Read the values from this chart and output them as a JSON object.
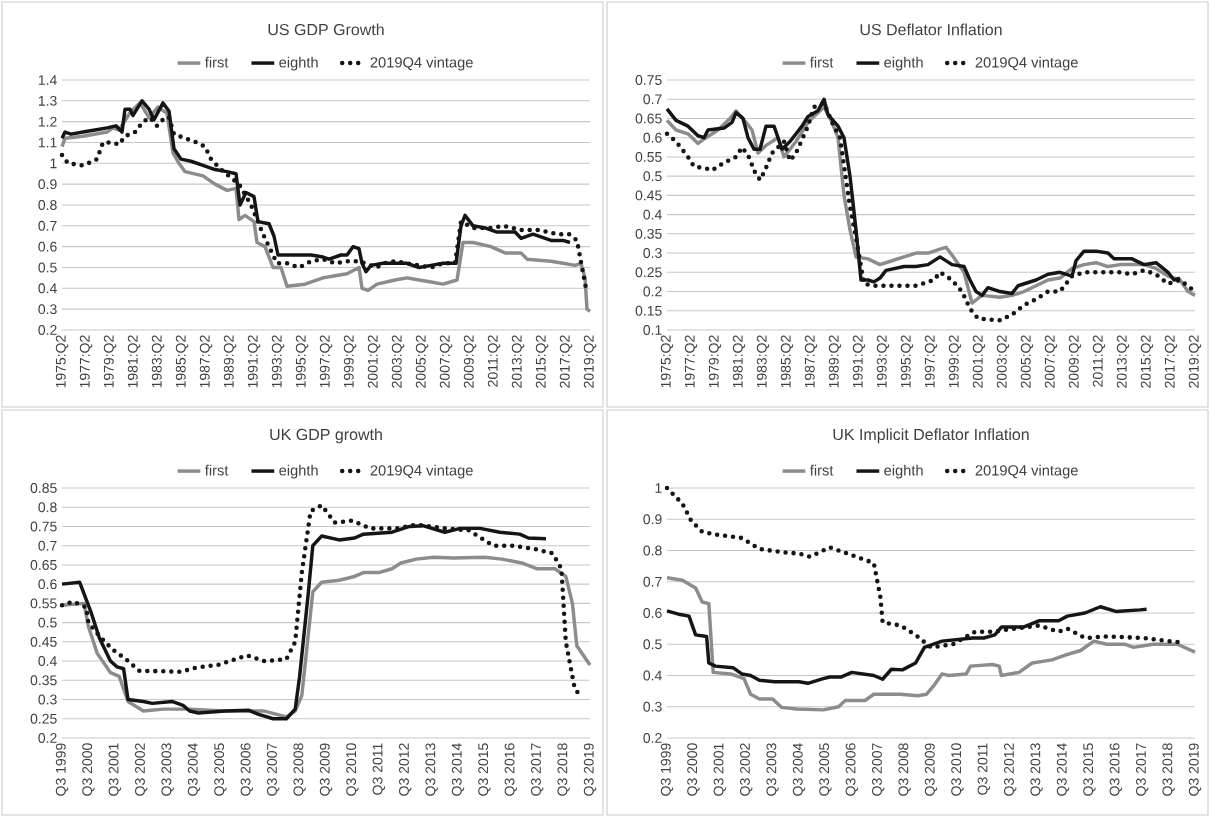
{
  "chart_data": [
    {
      "type": "line",
      "title": "US GDP Growth",
      "grid": "y",
      "legend": "top",
      "xlim": [
        "1975-04",
        "2019-04"
      ],
      "ylim": [
        0.2,
        1.4
      ],
      "yticks": [
        0.2,
        0.3,
        0.4,
        0.5,
        0.6,
        0.7,
        0.8,
        0.9,
        1,
        1.1,
        1.2,
        1.3,
        1.4
      ],
      "xticks": [
        {
          "value": "1975-04",
          "label": "1975:Q2"
        },
        {
          "value": "1977-04",
          "label": "1977:Q2"
        },
        {
          "value": "1979-04",
          "label": "1979:Q2"
        },
        {
          "value": "1981-04",
          "label": "1981:Q2"
        },
        {
          "value": "1983-04",
          "label": "1983:Q2"
        },
        {
          "value": "1985-04",
          "label": "1985:Q2"
        },
        {
          "value": "1987-04",
          "label": "1987:Q2"
        },
        {
          "value": "1989-04",
          "label": "1989:Q2"
        },
        {
          "value": "1991-04",
          "label": "1991:Q2"
        },
        {
          "value": "1993-04",
          "label": "1993:Q2"
        },
        {
          "value": "1995-04",
          "label": "1995:Q2"
        },
        {
          "value": "1997-04",
          "label": "1997:Q2"
        },
        {
          "value": "1999-04",
          "label": "1999:Q2"
        },
        {
          "value": "2001-04",
          "label": "2001:Q2"
        },
        {
          "value": "2003-04",
          "label": "2003:Q2"
        },
        {
          "value": "2005-04",
          "label": "2005:Q2"
        },
        {
          "value": "2007-04",
          "label": "2007:Q2"
        },
        {
          "value": "2009-04",
          "label": "2009:Q2"
        },
        {
          "value": "2011-04",
          "label": "2011:Q2"
        },
        {
          "value": "2013-04",
          "label": "2013:Q2"
        },
        {
          "value": "2015-04",
          "label": "2015:Q2"
        },
        {
          "value": "2017-04",
          "label": "2017:Q2"
        },
        {
          "value": "2019-04",
          "label": "2019:Q2"
        }
      ],
      "series": [
        {
          "name": "first",
          "color": "#8c8c8c",
          "line_style": "solid",
          "x": [
            "1975-04",
            "1975-07",
            "1977-01",
            "1979-01",
            "1979-07",
            "1980-01",
            "1981-01",
            "1981-10",
            "1982-07",
            "1983-04",
            "1984-01",
            "1984-07",
            "1985-01",
            "1985-07",
            "1987-01",
            "1988-01",
            "1989-01",
            "1989-10",
            "1990-01",
            "1990-07",
            "1991-04",
            "1991-07",
            "1992-03",
            "1992-11",
            "1993-07",
            "1994-01",
            "1995-07",
            "1997-01",
            "1998-01",
            "1999-01",
            "2000-01",
            "2000-04",
            "2000-10",
            "2001-07",
            "2003-01",
            "2004-01",
            "2005-01",
            "2006-01",
            "2007-01",
            "2008-03",
            "2008-09",
            "2009-07",
            "2011-01",
            "2012-03",
            "2013-07",
            "2014-01",
            "2016-01",
            "2017-01",
            "2018-01",
            "2018-07",
            "2018-11",
            "2019-01",
            "2019-04"
          ],
          "values": [
            1.08,
            1.12,
            1.13,
            1.15,
            1.17,
            1.16,
            1.25,
            1.29,
            1.22,
            1.27,
            1.24,
            1.05,
            1.0,
            0.96,
            0.94,
            0.9,
            0.87,
            0.88,
            0.73,
            0.75,
            0.72,
            0.62,
            0.6,
            0.5,
            0.5,
            0.41,
            0.42,
            0.45,
            0.46,
            0.47,
            0.5,
            0.4,
            0.39,
            0.42,
            0.44,
            0.45,
            0.44,
            0.43,
            0.42,
            0.44,
            0.62,
            0.62,
            0.6,
            0.57,
            0.57,
            0.54,
            0.53,
            0.52,
            0.51,
            0.52,
            0.45,
            0.3,
            0.29
          ]
        },
        {
          "name": "eighth",
          "color": "#151515",
          "line_style": "solid",
          "x": [
            "1975-04",
            "1975-07",
            "1976-01",
            "1977-01",
            "1978-01",
            "1979-01",
            "1979-10",
            "1980-04",
            "1980-07",
            "1980-12",
            "1981-03",
            "1981-12",
            "1982-07",
            "1982-12",
            "1983-09",
            "1984-03",
            "1984-08",
            "1985-03",
            "1986-01",
            "1987-01",
            "1988-01",
            "1989-01",
            "1989-10",
            "1990-02",
            "1990-08",
            "1991-04",
            "1991-08",
            "1992-07",
            "1992-12",
            "1993-04",
            "1994-01",
            "1995-01",
            "1996-01",
            "1997-01",
            "1997-07",
            "1998-07",
            "1999-01",
            "1999-07",
            "2000-01",
            "2000-04",
            "2000-08",
            "2001-01",
            "2002-01",
            "2003-01",
            "2004-01",
            "2005-01",
            "2006-01",
            "2007-01",
            "2008-02",
            "2008-07",
            "2008-11",
            "2009-07",
            "2010-07",
            "2011-07",
            "2013-01",
            "2013-07",
            "2014-07",
            "2016-01",
            "2017-01",
            "2017-08"
          ],
          "values": [
            1.12,
            1.15,
            1.14,
            1.15,
            1.16,
            1.17,
            1.18,
            1.15,
            1.26,
            1.26,
            1.23,
            1.3,
            1.26,
            1.21,
            1.29,
            1.25,
            1.07,
            1.02,
            1.01,
            0.99,
            0.97,
            0.96,
            0.95,
            0.8,
            0.86,
            0.84,
            0.72,
            0.71,
            0.65,
            0.56,
            0.56,
            0.56,
            0.56,
            0.55,
            0.54,
            0.56,
            0.56,
            0.6,
            0.59,
            0.52,
            0.48,
            0.51,
            0.52,
            0.52,
            0.52,
            0.5,
            0.51,
            0.52,
            0.52,
            0.7,
            0.75,
            0.7,
            0.69,
            0.67,
            0.67,
            0.64,
            0.66,
            0.63,
            0.63,
            0.62
          ]
        },
        {
          "name": "2019Q4 vintage",
          "color": "#151515",
          "line_style": "dotted",
          "x": [
            "1975-04",
            "1975-10",
            "1977-01",
            "1977-11",
            "1978-03",
            "1978-09",
            "1979-07",
            "1980-01",
            "1980-07",
            "1981-05",
            "1982-01",
            "1982-08",
            "1983-03",
            "1983-11",
            "1984-03",
            "1984-08",
            "1985-07",
            "1986-07",
            "1987-03",
            "1987-09",
            "1988-07",
            "1990-01",
            "1991-01",
            "1992-01",
            "1992-07",
            "1993-03",
            "1994-01",
            "1995-01",
            "1996-01",
            "1997-01",
            "1998-01",
            "1999-01",
            "2000-01",
            "2001-07",
            "2002-01",
            "2003-01",
            "2004-01",
            "2005-01",
            "2006-01",
            "2007-01",
            "2008-01",
            "2008-07",
            "2009-07",
            "2011-01",
            "2012-01",
            "2013-07",
            "2015-01",
            "2016-07",
            "2017-07",
            "2018-03",
            "2018-08",
            "2018-12"
          ],
          "values": [
            1.04,
            1.0,
            0.99,
            1.01,
            1.02,
            1.1,
            1.1,
            1.09,
            1.13,
            1.15,
            1.2,
            1.22,
            1.18,
            1.22,
            1.22,
            1.14,
            1.12,
            1.1,
            1.08,
            1.02,
            0.97,
            0.9,
            0.8,
            0.66,
            0.6,
            0.52,
            0.52,
            0.5,
            0.53,
            0.54,
            0.52,
            0.53,
            0.53,
            0.5,
            0.52,
            0.53,
            0.52,
            0.51,
            0.5,
            0.52,
            0.52,
            0.72,
            0.69,
            0.69,
            0.7,
            0.68,
            0.68,
            0.66,
            0.66,
            0.63,
            0.5,
            0.4
          ]
        }
      ]
    },
    {
      "type": "line",
      "title": "US Deflator Inflation",
      "grid": "y",
      "legend": "top",
      "xlim": [
        "1975-04",
        "2019-04"
      ],
      "ylim": [
        0.1,
        0.75
      ],
      "yticks": [
        0.1,
        0.15,
        0.2,
        0.25,
        0.3,
        0.35,
        0.4,
        0.45,
        0.5,
        0.55,
        0.6,
        0.65,
        0.7,
        0.75
      ],
      "xticks": [
        {
          "value": "1975-04",
          "label": "1975:Q2"
        },
        {
          "value": "1977-04",
          "label": "1977:Q2"
        },
        {
          "value": "1979-04",
          "label": "1979:Q2"
        },
        {
          "value": "1981-04",
          "label": "1981:Q2"
        },
        {
          "value": "1983-04",
          "label": "1983:Q2"
        },
        {
          "value": "1985-04",
          "label": "1985:Q2"
        },
        {
          "value": "1987-04",
          "label": "1987:Q2"
        },
        {
          "value": "1989-04",
          "label": "1989:Q2"
        },
        {
          "value": "1991-04",
          "label": "1991:Q2"
        },
        {
          "value": "1993-04",
          "label": "1993:Q2"
        },
        {
          "value": "1995-04",
          "label": "1995:Q2"
        },
        {
          "value": "1997-04",
          "label": "1997:Q2"
        },
        {
          "value": "1999-04",
          "label": "1999:Q2"
        },
        {
          "value": "2001-04",
          "label": "2001:Q2"
        },
        {
          "value": "2003-04",
          "label": "2003:Q2"
        },
        {
          "value": "2005-04",
          "label": "2005:Q2"
        },
        {
          "value": "2007-04",
          "label": "2007:Q2"
        },
        {
          "value": "2009-04",
          "label": "2009:Q2"
        },
        {
          "value": "2011-04",
          "label": "2011:Q2"
        },
        {
          "value": "2013-04",
          "label": "2013:Q2"
        },
        {
          "value": "2015-04",
          "label": "2015:Q2"
        },
        {
          "value": "2017-04",
          "label": "2017:Q2"
        },
        {
          "value": "2019-04",
          "label": "2019:Q2"
        }
      ],
      "series": [
        {
          "name": "first",
          "color": "#8c8c8c",
          "line_style": "solid",
          "x": [
            "1975-04",
            "1976-01",
            "1977-01",
            "1977-11",
            "1978-07",
            "1979-07",
            "1980-07",
            "1981-01",
            "1981-11",
            "1982-05",
            "1982-11",
            "1983-07",
            "1984-07",
            "1985-01",
            "1986-01",
            "1987-01",
            "1988-05",
            "1989-01",
            "1989-07",
            "1990-01",
            "1990-07",
            "1991-01",
            "1992-01",
            "1993-01",
            "1994-01",
            "1995-01",
            "1996-01",
            "1997-01",
            "1998-01",
            "1998-07",
            "1999-01",
            "2000-01",
            "2000-09",
            "2001-07",
            "2003-01",
            "2004-01",
            "2005-01",
            "2006-01",
            "2007-01",
            "2008-01",
            "2009-01",
            "2010-01",
            "2011-01",
            "2012-01",
            "2013-01",
            "2014-01",
            "2015-01",
            "2016-01",
            "2017-01",
            "2018-01",
            "2018-09",
            "2019-04"
          ],
          "values": [
            0.645,
            0.62,
            0.61,
            0.585,
            0.6,
            0.62,
            0.65,
            0.67,
            0.64,
            0.62,
            0.56,
            0.58,
            0.6,
            0.55,
            0.59,
            0.64,
            0.68,
            0.64,
            0.6,
            0.45,
            0.36,
            0.29,
            0.285,
            0.27,
            0.28,
            0.29,
            0.3,
            0.3,
            0.31,
            0.315,
            0.295,
            0.25,
            0.17,
            0.19,
            0.185,
            0.19,
            0.2,
            0.215,
            0.23,
            0.235,
            0.26,
            0.27,
            0.275,
            0.265,
            0.27,
            0.27,
            0.27,
            0.26,
            0.24,
            0.23,
            0.2,
            0.19
          ]
        },
        {
          "name": "eighth",
          "color": "#151515",
          "line_style": "solid",
          "x": [
            "1975-04",
            "1976-01",
            "1977-01",
            "1977-11",
            "1978-05",
            "1978-09",
            "1980-01",
            "1980-09",
            "1981-01",
            "1981-08",
            "1982-01",
            "1982-07",
            "1983-01",
            "1983-07",
            "1984-03",
            "1984-11",
            "1985-07",
            "1986-07",
            "1987-01",
            "1987-11",
            "1988-05",
            "1988-09",
            "1989-07",
            "1990-01",
            "1990-07",
            "1991-01",
            "1991-06",
            "1992-01",
            "1992-07",
            "1993-01",
            "1993-07",
            "1995-01",
            "1996-01",
            "1997-01",
            "1998-01",
            "1999-01",
            "2000-01",
            "2000-07",
            "2001-01",
            "2001-07",
            "2002-01",
            "2003-01",
            "2004-01",
            "2004-07",
            "2006-01",
            "2007-01",
            "2008-01",
            "2009-01",
            "2009-05",
            "2010-01",
            "2011-01",
            "2012-01",
            "2012-07",
            "2014-01",
            "2015-01",
            "2016-01",
            "2017-01",
            "2017-07",
            "2018-01"
          ],
          "values": [
            0.675,
            0.645,
            0.63,
            0.605,
            0.6,
            0.62,
            0.625,
            0.64,
            0.665,
            0.65,
            0.6,
            0.57,
            0.57,
            0.63,
            0.63,
            0.57,
            0.59,
            0.63,
            0.655,
            0.67,
            0.7,
            0.66,
            0.63,
            0.6,
            0.5,
            0.36,
            0.23,
            0.23,
            0.225,
            0.235,
            0.255,
            0.265,
            0.265,
            0.27,
            0.29,
            0.27,
            0.265,
            0.23,
            0.2,
            0.19,
            0.21,
            0.2,
            0.195,
            0.215,
            0.23,
            0.245,
            0.25,
            0.24,
            0.28,
            0.305,
            0.305,
            0.3,
            0.285,
            0.285,
            0.27,
            0.275,
            0.25,
            0.23,
            0.235
          ]
        },
        {
          "name": "2019Q4 vintage",
          "color": "#151515",
          "line_style": "dotted",
          "x": [
            "1975-04",
            "1976-01",
            "1977-01",
            "1977-07",
            "1978-07",
            "1979-01",
            "1980-01",
            "1981-01",
            "1981-07",
            "1982-01",
            "1982-08",
            "1983-01",
            "1983-06",
            "1984-01",
            "1985-01",
            "1985-07",
            "1986-01",
            "1987-01",
            "1987-07",
            "1988-05",
            "1989-01",
            "1989-09",
            "1990-07",
            "1991-01",
            "1991-09",
            "1992-07",
            "1994-01",
            "1996-01",
            "1997-07",
            "1998-01",
            "1999-01",
            "1999-11",
            "2000-07",
            "2001-03",
            "2003-01",
            "2004-01",
            "2005-01",
            "2006-01",
            "2007-01",
            "2008-01",
            "2009-01",
            "2010-01",
            "2012-01",
            "2013-01",
            "2014-01",
            "2015-01",
            "2016-01",
            "2017-01",
            "2018-01",
            "2019-04"
          ],
          "values": [
            0.61,
            0.59,
            0.55,
            0.525,
            0.52,
            0.515,
            0.535,
            0.55,
            0.575,
            0.555,
            0.51,
            0.49,
            0.515,
            0.56,
            0.59,
            0.54,
            0.56,
            0.63,
            0.68,
            0.69,
            0.64,
            0.6,
            0.42,
            0.34,
            0.22,
            0.215,
            0.215,
            0.215,
            0.23,
            0.25,
            0.23,
            0.2,
            0.155,
            0.13,
            0.125,
            0.14,
            0.165,
            0.18,
            0.2,
            0.2,
            0.24,
            0.25,
            0.25,
            0.25,
            0.245,
            0.255,
            0.245,
            0.22,
            0.23,
            0.2
          ]
        }
      ]
    },
    {
      "type": "line",
      "title": "UK GDP growth",
      "grid": "y",
      "legend": "top",
      "xlim": [
        "1999-07",
        "2019-07"
      ],
      "ylim": [
        0.2,
        0.85
      ],
      "yticks": [
        0.2,
        0.25,
        0.3,
        0.35,
        0.4,
        0.45,
        0.5,
        0.55,
        0.6,
        0.65,
        0.7,
        0.75,
        0.8,
        0.85
      ],
      "xticks": [
        {
          "value": "1999-07",
          "label": "Q3 1999"
        },
        {
          "value": "2000-07",
          "label": "Q3 2000"
        },
        {
          "value": "2001-07",
          "label": "Q3 2001"
        },
        {
          "value": "2002-07",
          "label": "Q3 2002"
        },
        {
          "value": "2003-07",
          "label": "Q3 2003"
        },
        {
          "value": "2004-07",
          "label": "Q3 2004"
        },
        {
          "value": "2005-07",
          "label": "Q3 2005"
        },
        {
          "value": "2006-07",
          "label": "Q3 2006"
        },
        {
          "value": "2007-07",
          "label": "Q3 2007"
        },
        {
          "value": "2008-07",
          "label": "Q3 2008"
        },
        {
          "value": "2009-07",
          "label": "Q3 2009"
        },
        {
          "value": "2010-07",
          "label": "Q3 2010"
        },
        {
          "value": "2011-07",
          "label": "Q3 2011"
        },
        {
          "value": "2012-07",
          "label": "Q3 2012"
        },
        {
          "value": "2013-07",
          "label": "Q3 2013"
        },
        {
          "value": "2014-07",
          "label": "Q3 2014"
        },
        {
          "value": "2015-07",
          "label": "Q3 2015"
        },
        {
          "value": "2016-07",
          "label": "Q3 2016"
        },
        {
          "value": "2017-07",
          "label": "Q3 2017"
        },
        {
          "value": "2018-07",
          "label": "Q3 2018"
        },
        {
          "value": "2019-07",
          "label": "Q3 2019"
        }
      ],
      "series": [
        {
          "name": "first",
          "color": "#8c8c8c",
          "line_style": "solid",
          "x": [
            "1999-07",
            "2000-05",
            "2000-07",
            "2000-11",
            "2001-05",
            "2001-09",
            "2002-01",
            "2002-08",
            "2003-05",
            "2004-05",
            "2005-09",
            "2007-03",
            "2008-01",
            "2008-05",
            "2008-08",
            "2009-01",
            "2009-05",
            "2010-01",
            "2010-08",
            "2010-12",
            "2011-07",
            "2012-01",
            "2012-05",
            "2012-12",
            "2013-08",
            "2014-05",
            "2015-07",
            "2016-03",
            "2016-12",
            "2017-07",
            "2018-03",
            "2018-08",
            "2018-11",
            "2019-01",
            "2019-07"
          ],
          "values": [
            0.545,
            0.55,
            0.49,
            0.42,
            0.37,
            0.36,
            0.295,
            0.27,
            0.275,
            0.275,
            0.27,
            0.27,
            0.255,
            0.27,
            0.31,
            0.58,
            0.605,
            0.61,
            0.62,
            0.63,
            0.63,
            0.64,
            0.655,
            0.665,
            0.67,
            0.668,
            0.67,
            0.665,
            0.655,
            0.64,
            0.64,
            0.62,
            0.55,
            0.44,
            0.39
          ]
        },
        {
          "name": "eighth",
          "color": "#151515",
          "line_style": "solid",
          "x": [
            "1999-07",
            "2000-03",
            "2000-08",
            "2000-12",
            "2001-05",
            "2001-08",
            "2001-11",
            "2002-01",
            "2002-08",
            "2002-12",
            "2003-09",
            "2004-02",
            "2004-05",
            "2004-09",
            "2005-09",
            "2006-08",
            "2006-12",
            "2007-07",
            "2008-01",
            "2008-05",
            "2008-07",
            "2008-11",
            "2009-01",
            "2009-05",
            "2010-01",
            "2010-08",
            "2010-12",
            "2012-01",
            "2012-09",
            "2013-03",
            "2014-01",
            "2014-08",
            "2015-05",
            "2016-02",
            "2016-11",
            "2017-03",
            "2017-11"
          ],
          "values": [
            0.6,
            0.605,
            0.53,
            0.46,
            0.4,
            0.385,
            0.38,
            0.3,
            0.295,
            0.29,
            0.295,
            0.285,
            0.27,
            0.265,
            0.27,
            0.272,
            0.262,
            0.25,
            0.25,
            0.275,
            0.36,
            0.58,
            0.7,
            0.725,
            0.715,
            0.72,
            0.73,
            0.735,
            0.75,
            0.752,
            0.735,
            0.745,
            0.745,
            0.735,
            0.73,
            0.72,
            0.718
          ]
        },
        {
          "name": "2019Q4 vintage",
          "color": "#151515",
          "line_style": "dotted",
          "x": [
            "1999-07",
            "1999-12",
            "2000-06",
            "2000-07",
            "2000-12",
            "2001-06",
            "2001-12",
            "2002-06",
            "2004-01",
            "2004-08",
            "2005-06",
            "2006-07",
            "2007-03",
            "2008-01",
            "2008-05",
            "2008-08",
            "2008-12",
            "2009-05",
            "2009-11",
            "2010-07",
            "2011-03",
            "2012-03",
            "2012-12",
            "2014-01",
            "2014-12",
            "2015-11",
            "2016-08",
            "2017-07",
            "2018-02",
            "2018-06",
            "2018-08",
            "2018-12",
            "2019-03"
          ],
          "values": [
            0.545,
            0.555,
            0.54,
            0.5,
            0.465,
            0.43,
            0.405,
            0.375,
            0.372,
            0.383,
            0.39,
            0.415,
            0.4,
            0.405,
            0.45,
            0.63,
            0.79,
            0.805,
            0.76,
            0.765,
            0.745,
            0.745,
            0.755,
            0.745,
            0.74,
            0.7,
            0.7,
            0.69,
            0.68,
            0.64,
            0.45,
            0.33,
            0.305
          ]
        }
      ]
    },
    {
      "type": "line",
      "title": "UK Implicit Deflator Inflation",
      "grid": "y",
      "legend": "top",
      "xlim": [
        "1999-07",
        "2019-07"
      ],
      "ylim": [
        0.2,
        1
      ],
      "yticks": [
        0.2,
        0.3,
        0.4,
        0.5,
        0.6,
        0.7,
        0.8,
        0.9,
        1
      ],
      "xticks": [
        {
          "value": "1999-07",
          "label": "Q3 1999"
        },
        {
          "value": "2000-07",
          "label": "Q3 2000"
        },
        {
          "value": "2001-07",
          "label": "Q3 2001"
        },
        {
          "value": "2002-07",
          "label": "Q3 2002"
        },
        {
          "value": "2003-07",
          "label": "Q3 2003"
        },
        {
          "value": "2004-07",
          "label": "Q3 2004"
        },
        {
          "value": "2005-07",
          "label": "Q3 2005"
        },
        {
          "value": "2006-07",
          "label": "Q3 2006"
        },
        {
          "value": "2007-07",
          "label": "Q3 2007"
        },
        {
          "value": "2008-07",
          "label": "Q3 2008"
        },
        {
          "value": "2009-07",
          "label": "Q3 2009"
        },
        {
          "value": "2010-07",
          "label": "Q3 2010"
        },
        {
          "value": "2011-07",
          "label": "Q3 2011"
        },
        {
          "value": "2012-07",
          "label": "Q3 2012"
        },
        {
          "value": "2013-07",
          "label": "Q3 2013"
        },
        {
          "value": "2014-07",
          "label": "Q3 2014"
        },
        {
          "value": "2015-07",
          "label": "Q3 2015"
        },
        {
          "value": "2016-07",
          "label": "Q3 2016"
        },
        {
          "value": "2017-07",
          "label": "Q3 2017"
        },
        {
          "value": "2018-07",
          "label": "Q3 2018"
        },
        {
          "value": "2019-07",
          "label": "Q3 2019"
        }
      ],
      "series": [
        {
          "name": "first",
          "color": "#8c8c8c",
          "line_style": "solid",
          "x": [
            "1999-07",
            "2000-02",
            "2000-08",
            "2000-11",
            "2001-02",
            "2001-04",
            "2001-12",
            "2002-06",
            "2002-09",
            "2003-01",
            "2003-07",
            "2003-11",
            "2004-06",
            "2005-06",
            "2006-01",
            "2006-04",
            "2007-01",
            "2007-05",
            "2008-05",
            "2009-01",
            "2009-05",
            "2009-08",
            "2009-12",
            "2010-03",
            "2010-11",
            "2011-01",
            "2011-11",
            "2012-02",
            "2012-03",
            "2012-11",
            "2013-05",
            "2014-02",
            "2014-08",
            "2015-03",
            "2015-09",
            "2016-03",
            "2016-11",
            "2017-03",
            "2017-12",
            "2018-11",
            "2019-07"
          ],
          "values": [
            0.713,
            0.705,
            0.68,
            0.635,
            0.63,
            0.41,
            0.405,
            0.39,
            0.34,
            0.325,
            0.325,
            0.298,
            0.293,
            0.29,
            0.3,
            0.32,
            0.32,
            0.34,
            0.34,
            0.335,
            0.34,
            0.365,
            0.405,
            0.4,
            0.405,
            0.43,
            0.435,
            0.43,
            0.4,
            0.41,
            0.44,
            0.45,
            0.465,
            0.48,
            0.51,
            0.5,
            0.5,
            0.49,
            0.5,
            0.5,
            0.475
          ]
        },
        {
          "name": "eighth",
          "color": "#151515",
          "line_style": "solid",
          "x": [
            "1999-07",
            "2000-01",
            "2000-05",
            "2000-08",
            "2001-01",
            "2001-02",
            "2001-05",
            "2002-01",
            "2002-05",
            "2002-09",
            "2003-01",
            "2003-08",
            "2004-07",
            "2004-11",
            "2005-06",
            "2005-09",
            "2006-02",
            "2006-07",
            "2007-05",
            "2007-09",
            "2008-01",
            "2008-06",
            "2008-12",
            "2009-04",
            "2009-12",
            "2011-02",
            "2011-07",
            "2011-12",
            "2012-03",
            "2013-01",
            "2013-08",
            "2014-05",
            "2014-09",
            "2015-05",
            "2015-12",
            "2016-07",
            "2017-06",
            "2017-09"
          ],
          "values": [
            0.607,
            0.595,
            0.59,
            0.53,
            0.525,
            0.44,
            0.43,
            0.425,
            0.405,
            0.4,
            0.385,
            0.38,
            0.38,
            0.375,
            0.39,
            0.395,
            0.395,
            0.41,
            0.4,
            0.388,
            0.42,
            0.418,
            0.44,
            0.49,
            0.51,
            0.52,
            0.52,
            0.53,
            0.555,
            0.555,
            0.575,
            0.575,
            0.59,
            0.6,
            0.62,
            0.605,
            0.61,
            0.612
          ]
        },
        {
          "name": "2019Q4 vintage",
          "color": "#151515",
          "line_style": "dotted",
          "x": [
            "1999-07",
            "2000-02",
            "2000-06",
            "2000-11",
            "2001-06",
            "2002-05",
            "2003-01",
            "2003-11",
            "2004-07",
            "2004-12",
            "2005-09",
            "2006-07",
            "2007-05",
            "2007-08",
            "2007-09",
            "2008-05",
            "2008-12",
            "2009-07",
            "2010-05",
            "2011-03",
            "2011-11",
            "2012-09",
            "2013-08",
            "2014-05",
            "2014-09",
            "2015-05",
            "2016-03",
            "2017-08",
            "2018-07",
            "2019-02"
          ],
          "values": [
            1.0,
            0.95,
            0.895,
            0.86,
            0.85,
            0.84,
            0.805,
            0.795,
            0.79,
            0.78,
            0.81,
            0.785,
            0.76,
            0.65,
            0.57,
            0.56,
            0.53,
            0.49,
            0.5,
            0.54,
            0.54,
            0.55,
            0.56,
            0.54,
            0.55,
            0.52,
            0.525,
            0.52,
            0.51,
            0.505
          ]
        }
      ]
    }
  ]
}
